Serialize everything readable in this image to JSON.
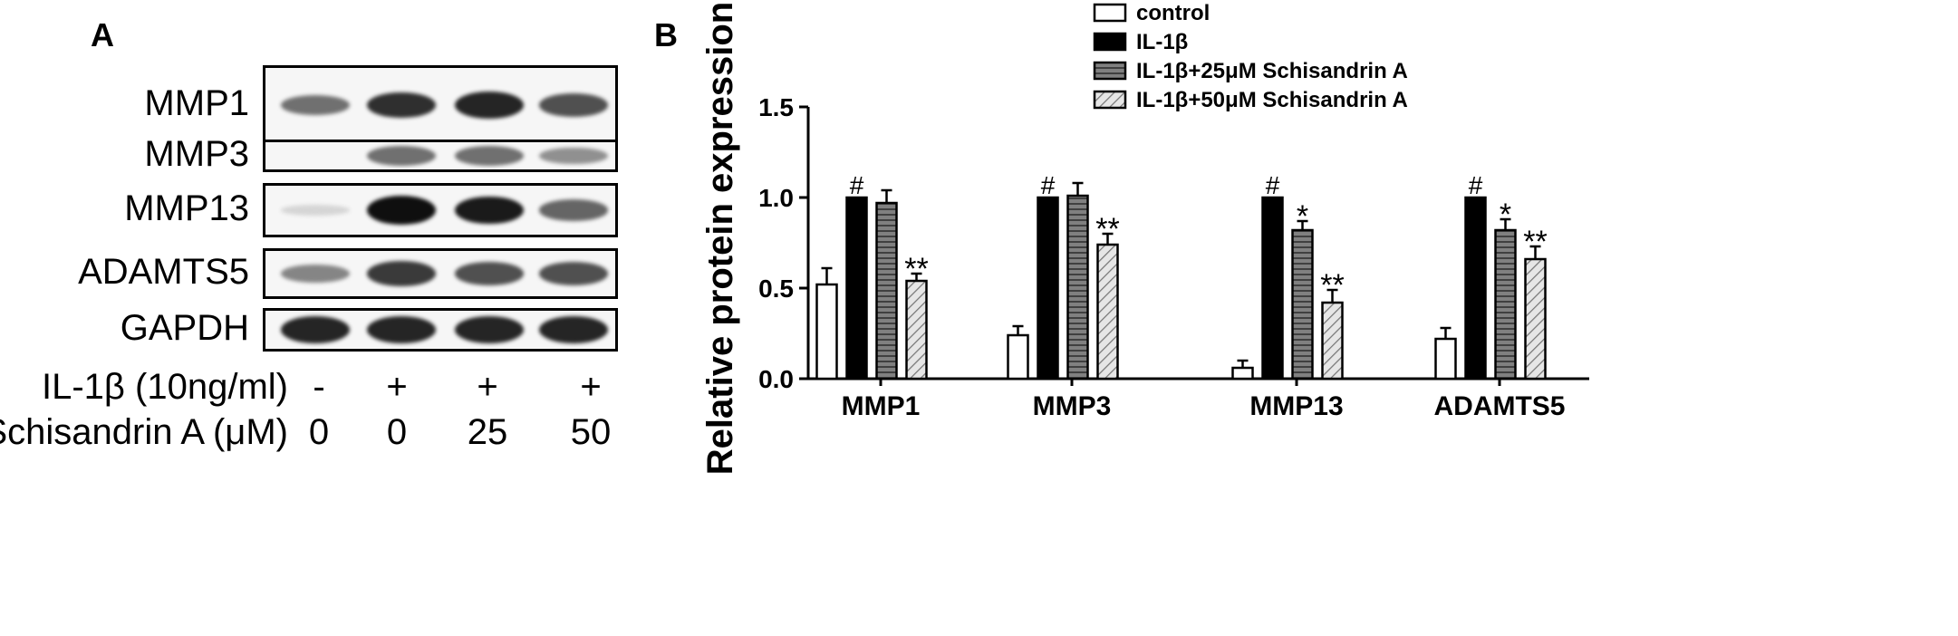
{
  "panel_a": {
    "label": "A",
    "blots": [
      {
        "label": "MMP1",
        "bands": [
          0.55,
          0.85,
          0.9,
          0.7
        ]
      },
      {
        "label": "MMP3",
        "bands": [
          0.0,
          0.55,
          0.55,
          0.4
        ]
      },
      {
        "label": "MMP13",
        "bands": [
          0.08,
          1.0,
          0.95,
          0.6
        ]
      },
      {
        "label": "ADAMTS5",
        "bands": [
          0.45,
          0.8,
          0.7,
          0.7
        ]
      },
      {
        "label": "GAPDH",
        "bands": [
          0.9,
          0.9,
          0.9,
          0.9
        ]
      }
    ],
    "conditions": [
      {
        "label": "IL-1β (10ng/ml)",
        "values": [
          "-",
          "+",
          "+",
          "+"
        ]
      },
      {
        "label": "Schisandrin A (μM)",
        "values": [
          "0",
          "0",
          "25",
          "50"
        ]
      }
    ]
  },
  "panel_b": {
    "label": "B",
    "chart_data": {
      "type": "bar",
      "ylabel": "Relative protein expression",
      "xlabel": "",
      "ylim": [
        0.0,
        1.5
      ],
      "yticks": [
        "0.0",
        "0.5",
        "1.0",
        "1.5"
      ],
      "categories": [
        "MMP1",
        "MMP3",
        "MMP13",
        "ADAMTS5"
      ],
      "series": [
        {
          "name": "control",
          "fill": "#ffffff",
          "pattern": "none",
          "values": [
            0.52,
            0.24,
            0.06,
            0.22
          ],
          "errors": [
            0.09,
            0.05,
            0.04,
            0.06
          ],
          "annotations": [
            "",
            "",
            "",
            ""
          ]
        },
        {
          "name": "IL-1β",
          "fill": "#000000",
          "pattern": "solid",
          "values": [
            1.0,
            1.0,
            1.0,
            1.0
          ],
          "errors": [
            0.0,
            0.0,
            0.0,
            0.0
          ],
          "annotations": [
            "#",
            "#",
            "#",
            "#"
          ]
        },
        {
          "name": "IL-1β+25μM Schisandrin A",
          "fill": "#808080",
          "pattern": "horizontal-lines",
          "values": [
            0.97,
            1.01,
            0.82,
            0.82
          ],
          "errors": [
            0.07,
            0.07,
            0.05,
            0.06
          ],
          "annotations": [
            "",
            "",
            "*",
            "*"
          ]
        },
        {
          "name": "IL-1β+50μM Schisandrin A",
          "fill": "#d8d8d8",
          "pattern": "diagonal-lines",
          "values": [
            0.54,
            0.74,
            0.42,
            0.66
          ],
          "errors": [
            0.04,
            0.06,
            0.07,
            0.07
          ],
          "annotations": [
            "**",
            "**",
            "**",
            "**"
          ]
        }
      ],
      "legend_position": "top-right"
    }
  }
}
